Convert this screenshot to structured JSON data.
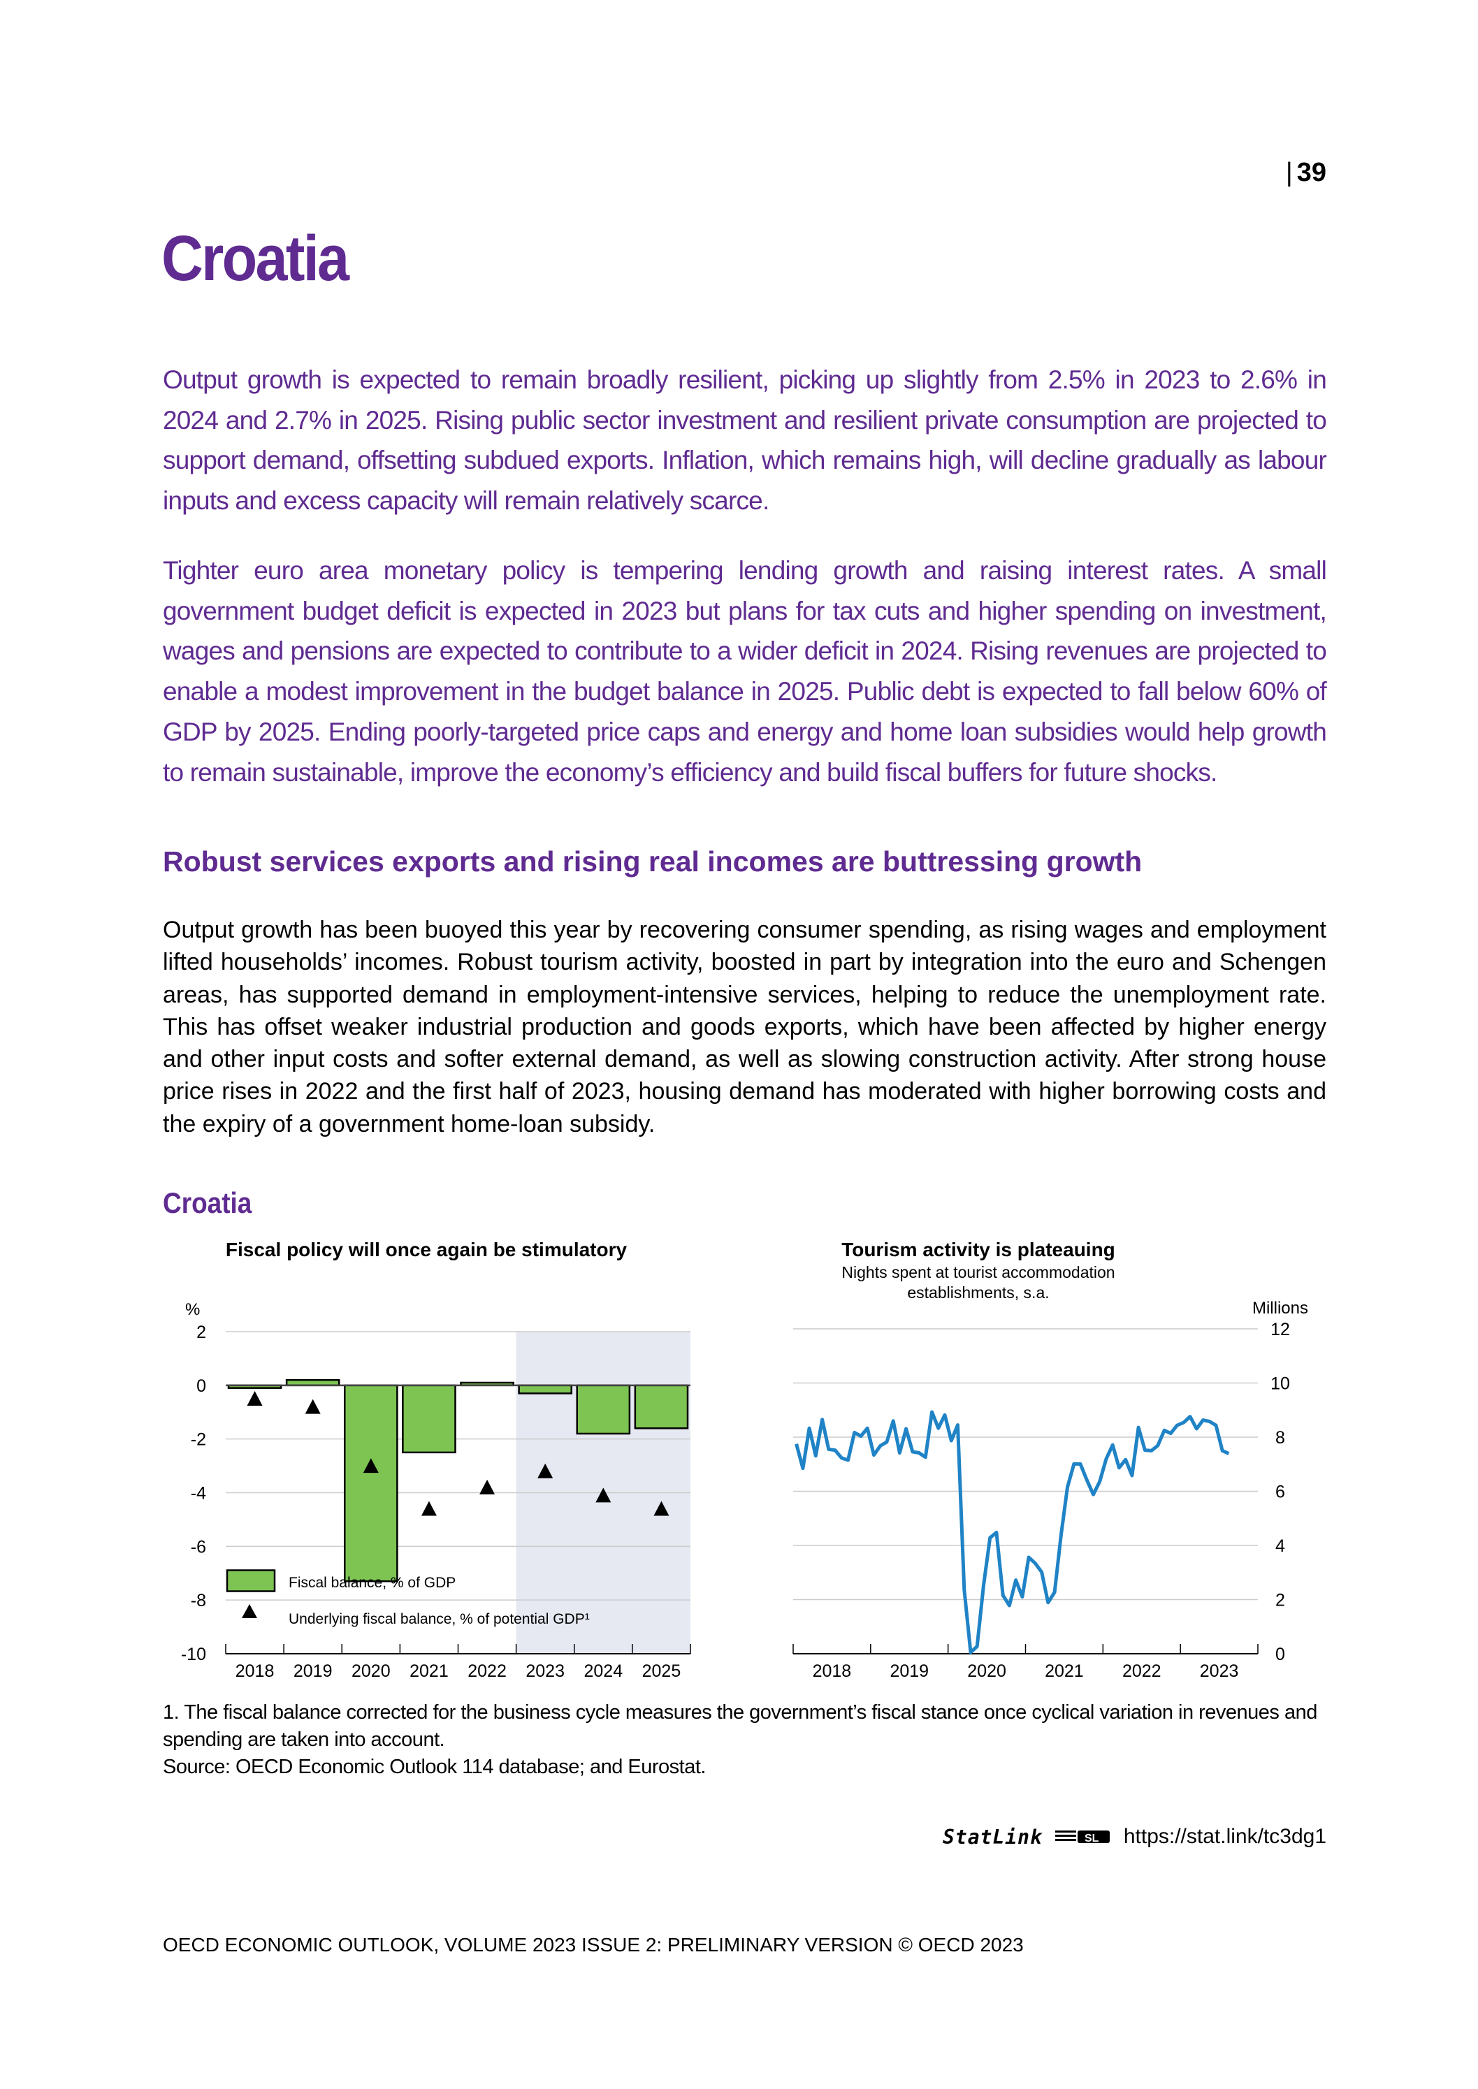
{
  "header": {
    "page_number": "39"
  },
  "title": "Croatia",
  "lead_paragraphs": [
    "Output growth is expected to remain broadly resilient, picking up slightly from 2.5% in 2023 to 2.6% in 2024 and 2.7% in 2025. Rising public sector investment and resilient private consumption are projected to support demand, offsetting subdued exports. Inflation, which remains high, will decline gradually as labour inputs and excess capacity will remain relatively scarce.",
    "Tighter euro area monetary policy is tempering lending growth and raising interest rates. A small government budget deficit is expected in 2023 but plans for tax cuts and higher spending on investment, wages and pensions are expected to contribute to a wider deficit in 2024. Rising revenues are projected to enable a modest improvement in the budget balance in 2025. Public debt is expected to fall below 60% of GDP by 2025. Ending poorly-targeted price caps and energy and home loan subsidies would help growth to remain sustainable, improve the economy’s efficiency and build fiscal buffers for future shocks."
  ],
  "section_heading": "Robust services exports and rising real incomes are buttressing growth",
  "body_paragraph": "Output growth has been buoyed this year by recovering consumer spending, as rising wages and employment lifted households’ incomes. Robust tourism activity, boosted in part by integration into the euro and Schengen areas, has supported demand in employment-intensive services, helping to reduce the unemployment rate. This has offset weaker industrial production and goods exports, which have been affected by higher energy and other input costs and softer external demand, as well as slowing construction activity. After strong house price rises in 2022 and the first half of 2023, housing demand has moderated with higher borrowing costs and the expiry of a government home-loan subsidy.",
  "figure_title": "Croatia",
  "colors": {
    "brand_purple": "#5f2b91",
    "bar_green": "#7dc452",
    "line_blue": "#1f83c6",
    "projection_shade": "#e6e9f2"
  },
  "chart_data": [
    {
      "type": "bar",
      "title": "Fiscal policy will once again be stimulatory",
      "ylabel": "%",
      "ylim": [
        -10,
        2
      ],
      "yticks": [
        2,
        0,
        -2,
        -4,
        -6,
        -8,
        -10
      ],
      "categories": [
        "2018",
        "2019",
        "2020",
        "2021",
        "2022",
        "2023",
        "2024",
        "2025"
      ],
      "projection_shaded_from": "2023",
      "grid": true,
      "legend_placement": "bottom-left",
      "series": [
        {
          "name": "Fiscal balance, % of GDP",
          "type": "bar",
          "values": [
            -0.1,
            0.2,
            -7.3,
            -2.5,
            0.1,
            -0.3,
            -1.8,
            -1.6
          ]
        },
        {
          "name": "Underlying fiscal balance, % of potential GDP¹",
          "type": "scatter",
          "marker": "triangle",
          "values": [
            -0.5,
            -0.8,
            -3.0,
            -4.6,
            -3.8,
            -3.2,
            -4.1,
            -4.6
          ]
        }
      ]
    },
    {
      "type": "line",
      "title": "Tourism activity is plateauing",
      "subtitle_lines": [
        "Nights spent at tourist accommodation",
        "establishments, s.a."
      ],
      "ylabel": "Millions",
      "ylim": [
        0,
        12
      ],
      "yticks": [
        12,
        10,
        8,
        6,
        4,
        2,
        0
      ],
      "y_axis_side": "right",
      "xticks": [
        "2018",
        "2019",
        "2020",
        "2021",
        "2022",
        "2023"
      ],
      "x_start": "2018-01",
      "x_frequency": "monthly",
      "grid": true,
      "values": [
        7.75,
        6.85,
        8.33,
        7.31,
        8.65,
        7.55,
        7.52,
        7.23,
        7.15,
        8.17,
        8.04,
        8.33,
        7.34,
        7.68,
        7.82,
        8.6,
        7.42,
        8.31,
        7.46,
        7.42,
        7.26,
        8.93,
        8.33,
        8.82,
        7.87,
        8.45,
        2.37,
        0.05,
        0.27,
        2.53,
        4.28,
        4.48,
        2.16,
        1.78,
        2.72,
        2.1,
        3.56,
        3.34,
        3.02,
        1.89,
        2.27,
        4.37,
        6.15,
        7.01,
        7.01,
        6.42,
        5.88,
        6.36,
        7.2,
        7.71,
        6.87,
        7.17,
        6.58,
        8.36,
        7.52,
        7.5,
        7.69,
        8.25,
        8.14,
        8.44,
        8.54,
        8.76,
        8.31,
        8.63,
        8.58,
        8.44,
        7.5,
        7.39
      ]
    }
  ],
  "notes": {
    "footnote": "1. The fiscal balance corrected for the business cycle measures the government’s fiscal stance once cyclical variation in revenues and spending are taken into account.",
    "source": "Source: OECD Economic Outlook 114 database; and Eurostat."
  },
  "statlink": {
    "logo_text": "StatLink",
    "url": "https://stat.link/tc3dg1"
  },
  "footer": "OECD ECONOMIC OUTLOOK, VOLUME 2023 ISSUE 2: PRELIMINARY VERSION © OECD 2023"
}
